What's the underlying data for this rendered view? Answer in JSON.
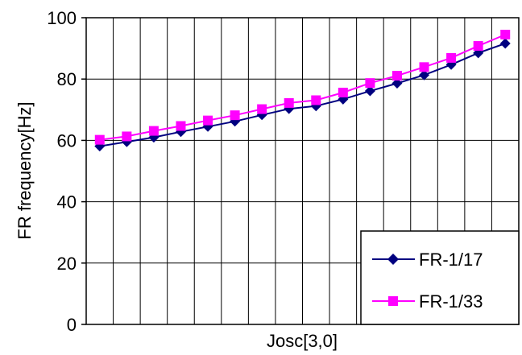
{
  "chart_data": {
    "type": "line",
    "title": "",
    "xlabel": "Josc[3,0]",
    "ylabel": "FR frequency[Hz]",
    "ylim": [
      0,
      100
    ],
    "yticks": [
      "0",
      "20",
      "40",
      "60",
      "80",
      "100"
    ],
    "x": [
      1,
      2,
      3,
      4,
      5,
      6,
      7,
      8,
      9,
      10,
      11,
      12,
      13,
      14,
      15,
      16
    ],
    "grid": true,
    "legend_position": "bottom-right",
    "series": [
      {
        "name": "FR-1/17",
        "color": "#000080",
        "marker": "diamond",
        "values": [
          58.1,
          59.5,
          61.0,
          62.8,
          64.5,
          66.2,
          68.3,
          70.3,
          71.2,
          73.4,
          76.1,
          78.6,
          81.3,
          84.7,
          88.5,
          91.6
        ]
      },
      {
        "name": "FR-1/33",
        "color": "#ff00ff",
        "marker": "square",
        "values": [
          60.2,
          61.3,
          63.1,
          64.7,
          66.5,
          68.2,
          70.2,
          72.2,
          73.1,
          75.6,
          78.7,
          81.1,
          83.9,
          86.9,
          90.8,
          94.5
        ]
      }
    ]
  }
}
